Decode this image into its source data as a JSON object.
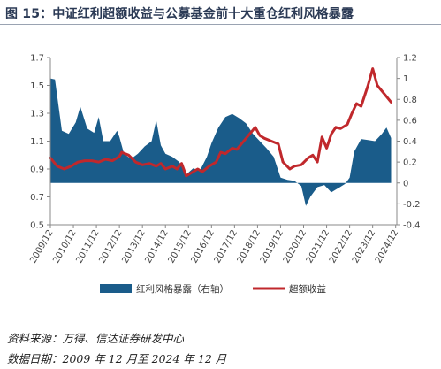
{
  "header": {
    "title": "图 15：中证红利超额收益与公募基金前十大重仓红利风格暴露"
  },
  "footer": {
    "source": "资料来源：万得、信达证券研发中心",
    "date_range": "数据日期：2009 年 12 月至 2024 年 12 月"
  },
  "chart_data": {
    "type": "bar+line",
    "title": "图 15：中证红利超额收益与公募基金前十大重仓红利风格暴露",
    "x_categories": [
      "2009/12",
      "2010/12",
      "2011/12",
      "2012/12",
      "2013/12",
      "2014/12",
      "2015/12",
      "2016/12",
      "2017/12",
      "2018/12",
      "2019/12",
      "2020/12",
      "2021/12",
      "2022/12",
      "2023/12",
      "2024/12"
    ],
    "left_axis": {
      "ylim": [
        0.5,
        1.7
      ],
      "ticks": [
        "0.5",
        "0.7",
        "0.9",
        "1.1",
        "1.3",
        "1.5",
        "1.7"
      ]
    },
    "right_axis": {
      "ylim": [
        -0.4,
        1.2
      ],
      "ticks": [
        "-0.4",
        "-0.2",
        "0",
        "0.2",
        "0.4",
        "0.6",
        "0.8",
        "1",
        "1.2"
      ]
    },
    "legend_position": "bottom",
    "series": [
      {
        "name": "红利风格暴露（右轴）",
        "type": "area",
        "axis": "right",
        "color": "#1a5c8a",
        "points": [
          [
            0,
            1.0
          ],
          [
            0.2,
            0.99
          ],
          [
            0.5,
            0.5
          ],
          [
            0.8,
            0.47
          ],
          [
            1.1,
            0.58
          ],
          [
            1.3,
            0.73
          ],
          [
            1.6,
            0.52
          ],
          [
            1.9,
            0.48
          ],
          [
            2.1,
            0.63
          ],
          [
            2.3,
            0.4
          ],
          [
            2.6,
            0.4
          ],
          [
            2.9,
            0.5
          ],
          [
            3.0,
            0.44
          ],
          [
            3.2,
            0.28
          ],
          [
            3.5,
            0.23
          ],
          [
            3.8,
            0.28
          ],
          [
            4.1,
            0.35
          ],
          [
            4.4,
            0.4
          ],
          [
            4.6,
            0.6
          ],
          [
            4.8,
            0.36
          ],
          [
            5.0,
            0.28
          ],
          [
            5.3,
            0.25
          ],
          [
            5.6,
            0.2
          ],
          [
            5.9,
            0.08
          ],
          [
            6.2,
            0.14
          ],
          [
            6.5,
            0.12
          ],
          [
            6.8,
            0.25
          ],
          [
            7.0,
            0.38
          ],
          [
            7.3,
            0.53
          ],
          [
            7.6,
            0.63
          ],
          [
            7.9,
            0.66
          ],
          [
            8.2,
            0.62
          ],
          [
            8.5,
            0.57
          ],
          [
            8.8,
            0.47
          ],
          [
            9.1,
            0.4
          ],
          [
            9.4,
            0.33
          ],
          [
            9.7,
            0.25
          ],
          [
            10.0,
            0.05
          ],
          [
            10.3,
            0.03
          ],
          [
            10.6,
            0.02
          ],
          [
            10.9,
            -0.03
          ],
          [
            11.1,
            -0.22
          ],
          [
            11.3,
            -0.13
          ],
          [
            11.6,
            -0.04
          ],
          [
            11.9,
            -0.02
          ],
          [
            12.2,
            -0.09
          ],
          [
            12.5,
            -0.05
          ],
          [
            12.8,
            -0.01
          ],
          [
            13.0,
            0.05
          ],
          [
            13.2,
            0.3
          ],
          [
            13.5,
            0.42
          ],
          [
            13.8,
            0.41
          ],
          [
            14.1,
            0.4
          ],
          [
            14.4,
            0.47
          ],
          [
            14.6,
            0.53
          ],
          [
            14.8,
            0.43
          ]
        ]
      },
      {
        "name": "超额收益",
        "type": "line",
        "axis": "left",
        "color": "#c0282c",
        "points": [
          [
            0,
            0.98
          ],
          [
            0.3,
            0.92
          ],
          [
            0.6,
            0.9
          ],
          [
            0.9,
            0.92
          ],
          [
            1.2,
            0.95
          ],
          [
            1.5,
            0.96
          ],
          [
            1.8,
            0.96
          ],
          [
            2.1,
            0.95
          ],
          [
            2.4,
            0.97
          ],
          [
            2.7,
            0.96
          ],
          [
            3.0,
            0.99
          ],
          [
            3.1,
            1.02
          ],
          [
            3.4,
            1.0
          ],
          [
            3.7,
            0.95
          ],
          [
            4.0,
            0.93
          ],
          [
            4.3,
            0.94
          ],
          [
            4.6,
            0.92
          ],
          [
            4.8,
            0.94
          ],
          [
            5.0,
            0.9
          ],
          [
            5.3,
            0.92
          ],
          [
            5.5,
            0.9
          ],
          [
            5.7,
            0.94
          ],
          [
            5.9,
            0.85
          ],
          [
            6.2,
            0.88
          ],
          [
            6.4,
            0.9
          ],
          [
            6.6,
            0.88
          ],
          [
            6.9,
            0.92
          ],
          [
            7.2,
            0.95
          ],
          [
            7.4,
            1.02
          ],
          [
            7.6,
            1.01
          ],
          [
            7.9,
            1.05
          ],
          [
            8.1,
            1.04
          ],
          [
            8.3,
            1.08
          ],
          [
            8.6,
            1.14
          ],
          [
            8.9,
            1.2
          ],
          [
            9.1,
            1.14
          ],
          [
            9.3,
            1.12
          ],
          [
            9.6,
            1.1
          ],
          [
            9.9,
            1.08
          ],
          [
            10.1,
            0.95
          ],
          [
            10.4,
            0.9
          ],
          [
            10.6,
            0.92
          ],
          [
            10.9,
            0.93
          ],
          [
            11.2,
            0.98
          ],
          [
            11.4,
            1.0
          ],
          [
            11.6,
            0.95
          ],
          [
            11.8,
            1.13
          ],
          [
            12.0,
            1.05
          ],
          [
            12.2,
            1.15
          ],
          [
            12.4,
            1.2
          ],
          [
            12.6,
            1.19
          ],
          [
            12.9,
            1.22
          ],
          [
            13.1,
            1.3
          ],
          [
            13.3,
            1.37
          ],
          [
            13.5,
            1.35
          ],
          [
            13.8,
            1.5
          ],
          [
            14.0,
            1.62
          ],
          [
            14.2,
            1.5
          ],
          [
            14.5,
            1.44
          ],
          [
            14.8,
            1.38
          ]
        ]
      }
    ]
  }
}
